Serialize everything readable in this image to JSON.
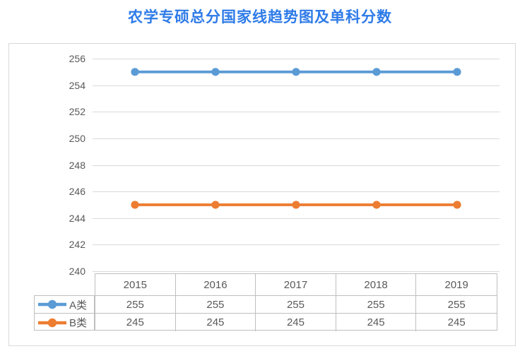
{
  "title": {
    "text": "农学专硕总分国家线趋势图及单科分数",
    "color": "#2E7BE8"
  },
  "chart_data": {
    "type": "line",
    "title": "农学专硕总分国家线趋势图及单科分数",
    "categories": [
      "2015",
      "2016",
      "2017",
      "2018",
      "2019"
    ],
    "series": [
      {
        "name": "A类",
        "values": [
          255,
          255,
          255,
          255,
          255
        ],
        "color": "#5B9BD5"
      },
      {
        "name": "B类",
        "values": [
          245,
          245,
          245,
          245,
          245
        ],
        "color": "#ED7D31"
      }
    ],
    "y_axis": {
      "min": 240,
      "max": 256,
      "step": 2,
      "tick_labels": [
        "256",
        "254",
        "252",
        "250",
        "248",
        "246",
        "244",
        "242",
        "240"
      ]
    },
    "xlabel": "",
    "ylabel": "",
    "grid": true,
    "legend_position": "data-table-left",
    "data_table": true,
    "colors": {
      "gridline": "#D9D9D9",
      "table_border": "#BFBFBF",
      "axis_text": "#595959",
      "frame_border": "#D9D9D9",
      "background": "#FFFFFF"
    }
  }
}
